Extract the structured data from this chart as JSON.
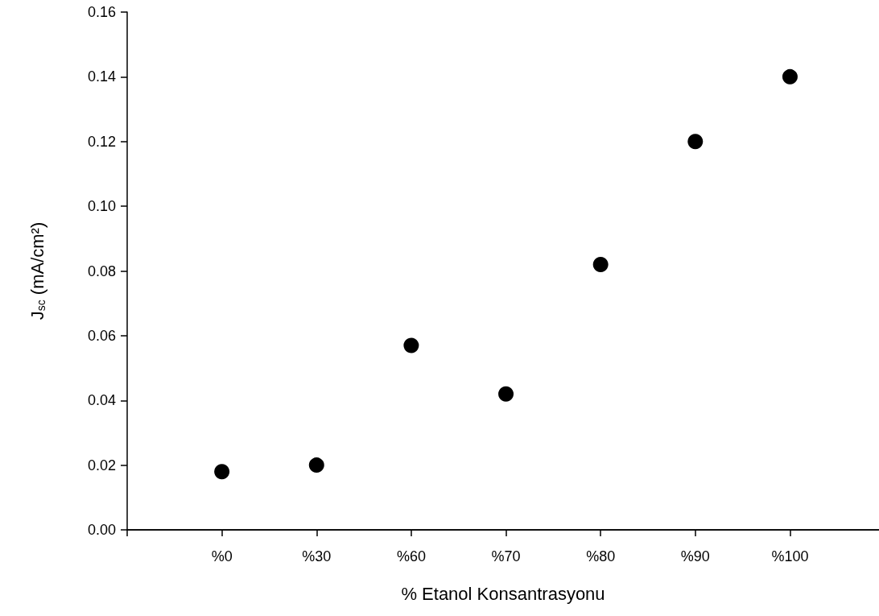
{
  "chart_data": {
    "type": "scatter",
    "xlabel": "% Etanol Konsantrasyonu",
    "ylabel": "J$_{sc}$ (mA/cm²)",
    "categories": [
      "%0",
      "%30",
      "%60",
      "%70",
      "%80",
      "%90",
      "%100"
    ],
    "values": [
      0.018,
      0.02,
      0.057,
      0.042,
      0.082,
      0.12,
      0.14
    ],
    "color": "#000000",
    "marker": "circle",
    "grid": false,
    "ylim": [
      0,
      0.16
    ],
    "yticks": [
      {
        "value": 0,
        "label": "0.00"
      },
      {
        "value": 0.02,
        "label": "0.02"
      },
      {
        "value": 0.04,
        "label": "0.04"
      },
      {
        "value": 0.06,
        "label": "0.06"
      },
      {
        "value": 0.08,
        "label": "0.08"
      },
      {
        "value": 0.1,
        "label": "0.10"
      },
      {
        "value": 0.12,
        "label": "0.12"
      },
      {
        "value": 0.14,
        "label": "0.14"
      },
      {
        "value": 0.16,
        "label": "0.16"
      }
    ]
  }
}
